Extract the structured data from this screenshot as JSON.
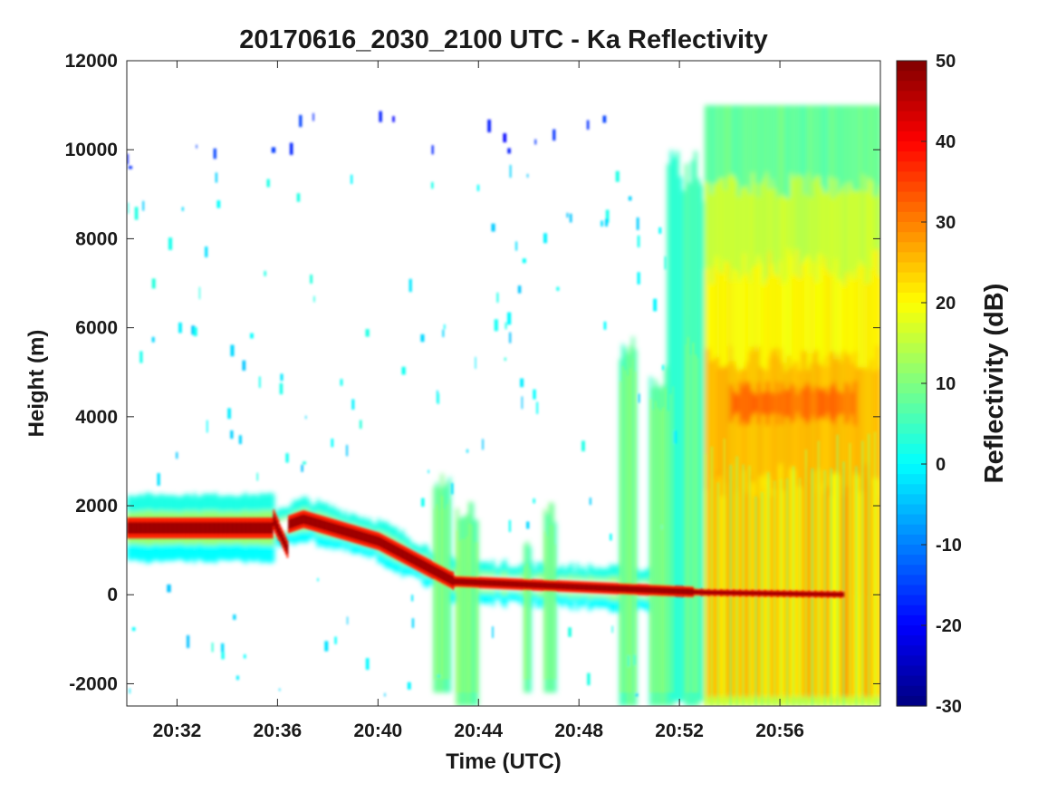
{
  "chart_data": {
    "type": "heatmap",
    "title": "20170616_2030_2100 UTC - Ka Reflectivity",
    "xlabel": "Time (UTC)",
    "ylabel": "Height (m)",
    "colorbar_label": "Reflectivity (dB)",
    "colormap": "jet",
    "xlim": [
      "20:30",
      "21:00"
    ],
    "ylim": [
      -2500,
      12000
    ],
    "clim": [
      -30,
      50
    ],
    "x_ticks": [
      "20:32",
      "20:36",
      "20:40",
      "20:44",
      "20:48",
      "20:52",
      "20:56"
    ],
    "y_ticks": [
      -2000,
      0,
      2000,
      4000,
      6000,
      8000,
      10000,
      12000
    ],
    "colorbar_ticks": [
      50,
      40,
      30,
      20,
      10,
      0,
      -10,
      -20,
      -30
    ],
    "grid": false,
    "features": [
      {
        "name": "bright band / surface echo",
        "x": [
          "20:30",
          "20:36",
          "20:37",
          "20:40",
          "20:43",
          "20:53",
          "20:59"
        ],
        "height_m": [
          1500,
          1500,
          1700,
          1200,
          300,
          50,
          0
        ],
        "reflectivity_db": 50
      },
      {
        "name": "deep convection",
        "x_range": [
          "20:53",
          "21:00"
        ],
        "height_range_m": [
          -2500,
          11000
        ],
        "reflectivity_db_range": [
          10,
          35
        ]
      },
      {
        "name": "melting layer core",
        "x_range": [
          "20:54",
          "20:59"
        ],
        "height_range_m": [
          3800,
          4800
        ],
        "reflectivity_db": 32
      }
    ]
  }
}
